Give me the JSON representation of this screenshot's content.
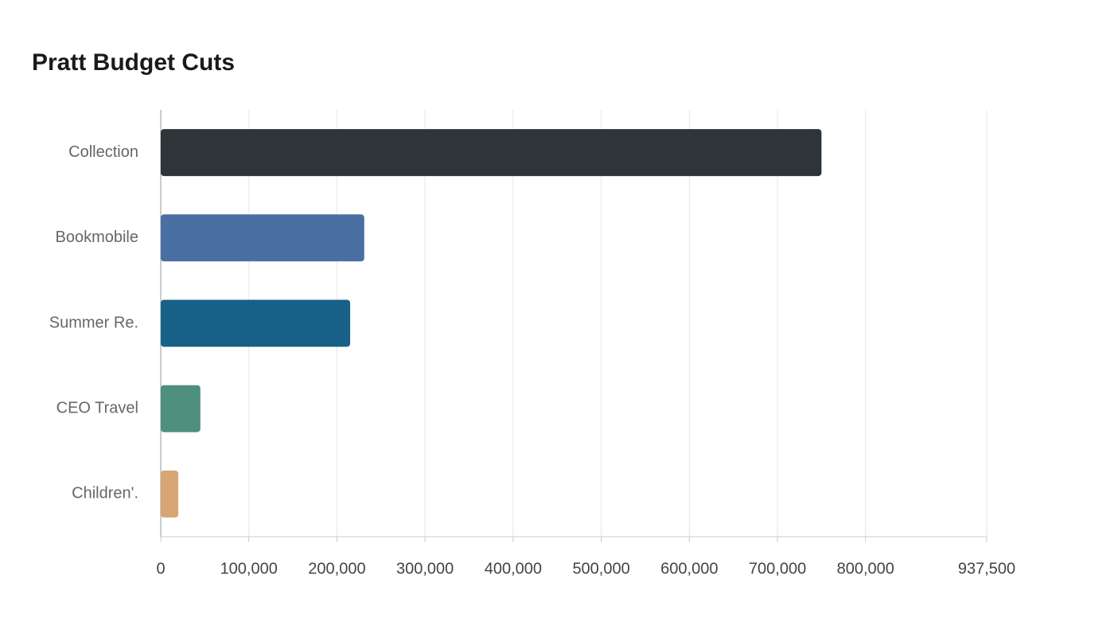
{
  "chart_data": {
    "type": "bar",
    "orientation": "horizontal",
    "title": "Pratt Budget Cuts",
    "categories": [
      "Collection",
      "Bookmobile",
      "Summer Re.",
      "CEO Travel",
      "Children'."
    ],
    "values": [
      750000,
      231000,
      215000,
      45000,
      20000
    ],
    "colors": [
      "#2e3538",
      "#4a6fa3",
      "#176087",
      "#4f8f7d",
      "#d8a574"
    ],
    "xlim": [
      0,
      937500
    ],
    "xticks": [
      0,
      {
        "value": 100000,
        "label": "100,000"
      },
      {
        "value": 200000,
        "label": "200,000"
      },
      {
        "value": 300000,
        "label": "300,000"
      },
      {
        "value": 400000,
        "label": "400,000"
      },
      {
        "value": 500000,
        "label": "500,000"
      },
      {
        "value": 600000,
        "label": "600,000"
      },
      {
        "value": 700000,
        "label": "700,000"
      },
      {
        "value": 800000,
        "label": "800,000"
      },
      {
        "value": 937500,
        "label": "937,500"
      }
    ],
    "grid": true
  }
}
